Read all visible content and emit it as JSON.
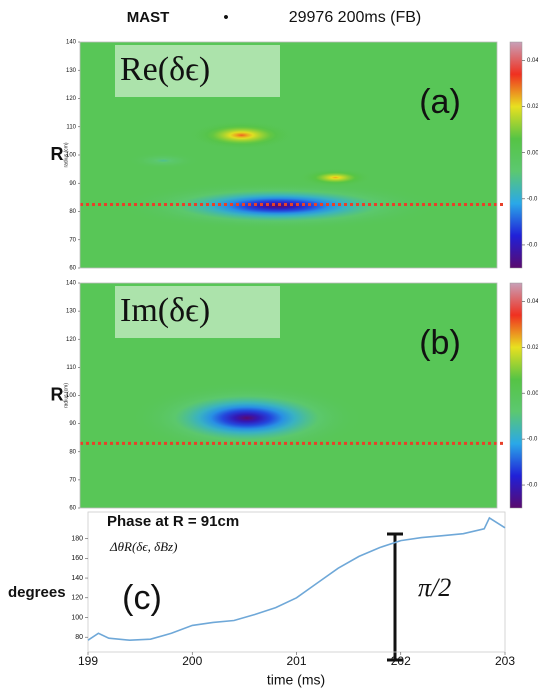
{
  "title": {
    "experiment": "MAST",
    "separator": "•",
    "shot": "29976 200ms (FB)"
  },
  "chart_data": [
    {
      "type": "heatmap",
      "label": "Re(δϵ)",
      "panel_label": "(a)",
      "ylabel": "R",
      "ylabel_small": "radius (cm)",
      "xlim": [
        199,
        203
      ],
      "ylim": [
        60,
        140
      ],
      "yticks": [
        60,
        70,
        80,
        90,
        100,
        110,
        120,
        130,
        140
      ],
      "x": [
        200.9,
        200.55,
        201.45,
        199.8
      ],
      "y": [
        82,
        107,
        92,
        98
      ],
      "values": [
        -0.05,
        0.03,
        0.025,
        -0.012
      ],
      "x_radius": [
        1.6,
        0.55,
        0.38,
        0.35
      ],
      "y_radius": [
        9,
        5.5,
        3.5,
        3
      ],
      "reference_y": 82.5,
      "reference_color": "#e8402a",
      "clim": [
        -0.05,
        0.048
      ],
      "colormap": [
        "#5a0a6e",
        "#2020d8",
        "#2aa8e8",
        "#5cc870",
        "#55c445",
        "#e8e020",
        "#f03020",
        "#c8a0b8"
      ],
      "cticks": [
        0.04,
        0.02,
        {
          "value": 0,
          "label": "0.00"
        },
        {
          "value": -0.02,
          "label": "-0.0"
        },
        {
          "value": -0.04,
          "label": "-0.0"
        }
      ]
    },
    {
      "type": "heatmap",
      "label": "Im(δϵ)",
      "panel_label": "(b)",
      "ylabel": "R",
      "ylabel_small": "radius (cm)",
      "xlim": [
        199,
        203
      ],
      "ylim": [
        60,
        140
      ],
      "yticks": [
        60,
        70,
        80,
        90,
        100,
        110,
        120,
        130,
        140
      ],
      "x": [
        200.6
      ],
      "y": [
        92
      ],
      "values": [
        -0.05
      ],
      "x_radius": [
        1.15
      ],
      "y_radius": [
        13
      ],
      "reference_y": 83,
      "reference_color": "#e8402a",
      "clim": [
        -0.05,
        0.048
      ],
      "colormap": [
        "#5a0a6e",
        "#2020d8",
        "#2aa8e8",
        "#5cc870",
        "#55c445",
        "#e8e020",
        "#f03020",
        "#c8a0b8"
      ],
      "cticks": [
        0.04,
        0.02,
        {
          "value": 0,
          "label": "0.00"
        },
        {
          "value": -0.02,
          "label": "-0.0"
        },
        {
          "value": -0.04,
          "label": "-0.0"
        }
      ]
    },
    {
      "type": "line",
      "panel_label": "(c)",
      "ylabel": "degrees",
      "xlabel": "time (ms)",
      "annotations": [
        "Phase at R = 91cm",
        "ΔθR(δϵ, δBz)",
        "π/2"
      ],
      "color": "#6fa8d8",
      "x": [
        199.0,
        199.1,
        199.2,
        199.4,
        199.6,
        199.8,
        200.0,
        200.2,
        200.4,
        200.6,
        200.8,
        201.0,
        201.2,
        201.4,
        201.6,
        201.8,
        202.0,
        202.2,
        202.4,
        202.6,
        202.8,
        202.85,
        203.0
      ],
      "values": [
        77,
        84,
        79,
        77,
        78,
        84,
        92,
        95,
        97,
        103,
        110,
        120,
        135,
        150,
        162,
        171,
        178,
        181,
        183,
        185,
        190,
        201,
        191
      ],
      "xlim": [
        199,
        203
      ],
      "ylim": [
        65,
        207
      ],
      "xticks": [
        199,
        200,
        201,
        202,
        203
      ],
      "yticks": [
        80,
        100,
        120,
        140,
        160,
        180
      ]
    }
  ]
}
